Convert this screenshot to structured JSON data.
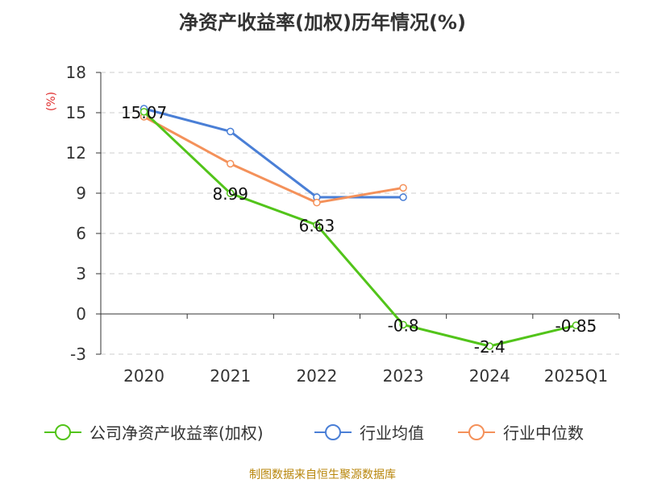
{
  "chart_data": {
    "type": "line",
    "title": "净资产收益率(加权)历年情况(%)",
    "ylabel": "(%)",
    "categories": [
      "2020",
      "2021",
      "2022",
      "2023",
      "2024",
      "2025Q1"
    ],
    "ylim": [
      -3,
      18
    ],
    "yticks": [
      18,
      15,
      12,
      9,
      6,
      3,
      0,
      -3
    ],
    "grid": true,
    "legend_position": "bottom",
    "series": [
      {
        "name": "公司净资产收益率(加权)",
        "color": "#52c41a",
        "values": [
          15.07,
          8.99,
          6.63,
          -0.8,
          -2.4,
          -0.85
        ],
        "labels": [
          "15.07",
          "8.99",
          "6.63",
          "-0.8",
          "-2.4",
          "-0.85"
        ]
      },
      {
        "name": "行业均值",
        "color": "#4a7fd6",
        "values": [
          15.3,
          13.6,
          8.7,
          8.7,
          null,
          null
        ]
      },
      {
        "name": "行业中位数",
        "color": "#f4915a",
        "values": [
          14.7,
          11.2,
          8.3,
          9.4,
          null,
          null
        ]
      }
    ]
  },
  "source_note": "制图数据来自恒生聚源数据库"
}
